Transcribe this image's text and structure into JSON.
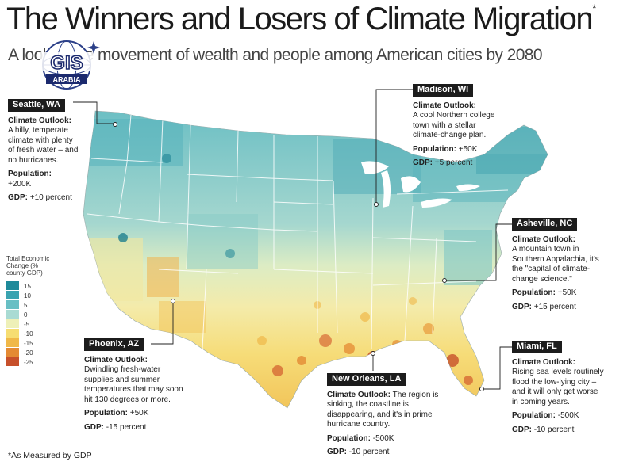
{
  "title": "The Winners and Losers of Climate Migration",
  "title_asterisk": "*",
  "subtitle": "A look at the movement of wealth and people among American cities by 2080",
  "logo": {
    "text_top": "GIS",
    "text_bottom": "ARABIA"
  },
  "legend": {
    "title": "Total Economic Change (% county GDP)",
    "items": [
      {
        "label": "15",
        "color": "#1f8a9a"
      },
      {
        "label": "10",
        "color": "#3aa3b0"
      },
      {
        "label": "5",
        "color": "#68bfc4"
      },
      {
        "label": "0",
        "color": "#a9dbd3"
      },
      {
        "label": "-5",
        "color": "#eef0b8"
      },
      {
        "label": "-10",
        "color": "#f6dd72"
      },
      {
        "label": "-15",
        "color": "#f0b848"
      },
      {
        "label": "-20",
        "color": "#e48a33"
      },
      {
        "label": "-25",
        "color": "#c7502b"
      }
    ]
  },
  "callouts": {
    "seattle": {
      "city": "Seattle, WA",
      "outlook_label": "Climate Outlook:",
      "outlook": "A hilly, temperate climate with plenty of fresh water – and no hurricanes.",
      "pop_label": "Population:",
      "pop": "+200K",
      "gdp_label": "GDP:",
      "gdp": "+10 percent"
    },
    "madison": {
      "city": "Madison, WI",
      "outlook_label": "Climate Outlook:",
      "outlook": "A cool Northern college town with a stellar climate-change plan.",
      "pop_label": "Population:",
      "pop": "+50K",
      "gdp_label": "GDP:",
      "gdp": "+5 percent"
    },
    "asheville": {
      "city": "Asheville, NC",
      "outlook_label": "Climate Outlook:",
      "outlook": "A mountain town in Southern Appalachia, it's the \"capital of climate-change science.\"",
      "pop_label": "Population:",
      "pop": "+50K",
      "gdp_label": "GDP:",
      "gdp": "+15 percent"
    },
    "phoenix": {
      "city": "Phoenix, AZ",
      "outlook_label": "Climate Outlook:",
      "outlook": "Dwindling fresh-water supplies and summer temperatures that may soon hit 130 degrees or more.",
      "pop_label": "Population:",
      "pop": "+50K",
      "gdp_label": "GDP:",
      "gdp": "-15 percent"
    },
    "neworleans": {
      "city": "New Orleans, LA",
      "outlook_label": "Climate Outlook:",
      "outlook": "The region is sinking, the coastline is disappearing, and it's in prime hurricane country.",
      "pop_label": "Population:",
      "pop": "-500K",
      "gdp_label": "GDP:",
      "gdp": "-10 percent"
    },
    "miami": {
      "city": "Miami, FL",
      "outlook_label": "Climate Outlook:",
      "outlook": "Rising sea levels routinely flood the low-lying city – and it will only get worse in coming years.",
      "pop_label": "Population:",
      "pop": "-500K",
      "gdp_label": "GDP:",
      "gdp": "-10 percent"
    }
  },
  "footnote": "*As Measured by GDP"
}
